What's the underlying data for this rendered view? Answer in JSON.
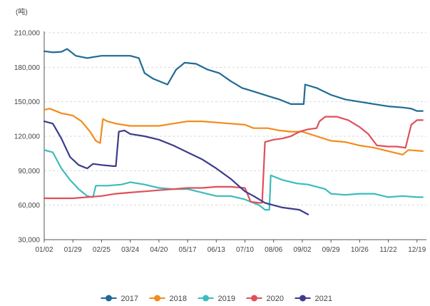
{
  "chart_data": {
    "type": "line",
    "unit": "(吨)",
    "ylim": [
      30000,
      210000
    ],
    "yticks": [
      "30,000",
      "60,000",
      "90,000",
      "120,000",
      "150,000",
      "180,000",
      "210,000"
    ],
    "ytick_values": [
      30000,
      60000,
      90000,
      120000,
      150000,
      180000,
      210000
    ],
    "x_categories": [
      "01/02",
      "01/29",
      "02/25",
      "03/24",
      "04/20",
      "05/17",
      "06/13",
      "07/10",
      "08/06",
      "09/02",
      "09/29",
      "10/26",
      "11/22",
      "12/19"
    ],
    "grid": "horizontal-dashed",
    "legend_position": "bottom",
    "series": [
      {
        "name": "2017",
        "color": "#1f6b93",
        "points": [
          [
            0,
            194000
          ],
          [
            0.3,
            193000
          ],
          [
            0.6,
            193500
          ],
          [
            0.8,
            196000
          ],
          [
            1.1,
            190000
          ],
          [
            1.5,
            188000
          ],
          [
            2,
            190000
          ],
          [
            2.5,
            190000
          ],
          [
            3,
            190000
          ],
          [
            3.3,
            188000
          ],
          [
            3.5,
            175000
          ],
          [
            3.8,
            170000
          ],
          [
            4.3,
            165000
          ],
          [
            4.6,
            178000
          ],
          [
            4.9,
            184000
          ],
          [
            5.3,
            183000
          ],
          [
            5.7,
            178000
          ],
          [
            6.1,
            175000
          ],
          [
            6.5,
            168000
          ],
          [
            6.9,
            162000
          ],
          [
            7.3,
            159000
          ],
          [
            7.8,
            155000
          ],
          [
            8.2,
            152000
          ],
          [
            8.6,
            148000
          ],
          [
            9.05,
            148000
          ],
          [
            9.1,
            165000
          ],
          [
            9.5,
            162000
          ],
          [
            10,
            156000
          ],
          [
            10.5,
            152000
          ],
          [
            11,
            150000
          ],
          [
            11.5,
            148000
          ],
          [
            12,
            146000
          ],
          [
            12.5,
            145000
          ],
          [
            12.8,
            144000
          ],
          [
            13,
            142000
          ],
          [
            13.2,
            142000
          ]
        ]
      },
      {
        "name": "2018",
        "color": "#f28c1c",
        "points": [
          [
            0,
            143000
          ],
          [
            0.2,
            144000
          ],
          [
            0.6,
            140000
          ],
          [
            1,
            138000
          ],
          [
            1.3,
            133000
          ],
          [
            1.6,
            124000
          ],
          [
            1.8,
            116000
          ],
          [
            1.95,
            114000
          ],
          [
            2.05,
            135000
          ],
          [
            2.2,
            133000
          ],
          [
            2.5,
            131000
          ],
          [
            3,
            129000
          ],
          [
            3.6,
            129000
          ],
          [
            4,
            129000
          ],
          [
            4.5,
            131000
          ],
          [
            5,
            133000
          ],
          [
            5.5,
            133000
          ],
          [
            6,
            132000
          ],
          [
            6.5,
            131000
          ],
          [
            7,
            130000
          ],
          [
            7.3,
            127000
          ],
          [
            7.8,
            127000
          ],
          [
            8.2,
            125000
          ],
          [
            8.6,
            124000
          ],
          [
            9,
            124000
          ],
          [
            9.5,
            120000
          ],
          [
            10,
            116000
          ],
          [
            10.5,
            115000
          ],
          [
            11,
            112000
          ],
          [
            11.5,
            110000
          ],
          [
            12,
            107000
          ],
          [
            12.5,
            104000
          ],
          [
            12.7,
            108000
          ],
          [
            13.2,
            107000
          ]
        ]
      },
      {
        "name": "2019",
        "color": "#3cbcbc",
        "points": [
          [
            0,
            108000
          ],
          [
            0.3,
            106000
          ],
          [
            0.6,
            92000
          ],
          [
            0.9,
            82000
          ],
          [
            1.2,
            74000
          ],
          [
            1.5,
            68000
          ],
          [
            1.7,
            67000
          ],
          [
            1.8,
            77000
          ],
          [
            2.2,
            77000
          ],
          [
            2.7,
            78000
          ],
          [
            3,
            80000
          ],
          [
            3.5,
            78000
          ],
          [
            4,
            75000
          ],
          [
            4.5,
            74000
          ],
          [
            5,
            74000
          ],
          [
            5.5,
            71000
          ],
          [
            6,
            68000
          ],
          [
            6.5,
            68000
          ],
          [
            7,
            65000
          ],
          [
            7.5,
            60000
          ],
          [
            7.7,
            56000
          ],
          [
            7.85,
            56000
          ],
          [
            7.9,
            86000
          ],
          [
            8.3,
            82000
          ],
          [
            8.8,
            79000
          ],
          [
            9.2,
            78000
          ],
          [
            9.8,
            74000
          ],
          [
            10,
            70000
          ],
          [
            10.5,
            69000
          ],
          [
            11,
            70000
          ],
          [
            11.5,
            70000
          ],
          [
            12,
            67000
          ],
          [
            12.5,
            68000
          ],
          [
            13,
            67000
          ],
          [
            13.2,
            67000
          ]
        ]
      },
      {
        "name": "2020",
        "color": "#e0505a",
        "points": [
          [
            0,
            66000
          ],
          [
            0.5,
            66000
          ],
          [
            1,
            66000
          ],
          [
            1.5,
            67000
          ],
          [
            2,
            68000
          ],
          [
            2.5,
            70000
          ],
          [
            3,
            71000
          ],
          [
            3.5,
            72000
          ],
          [
            4,
            73000
          ],
          [
            4.5,
            74000
          ],
          [
            5,
            75000
          ],
          [
            5.5,
            75000
          ],
          [
            6,
            76000
          ],
          [
            6.5,
            76000
          ],
          [
            7,
            75000
          ],
          [
            7.2,
            63000
          ],
          [
            7.5,
            62000
          ],
          [
            7.6,
            62000
          ],
          [
            7.7,
            115000
          ],
          [
            8,
            117000
          ],
          [
            8.3,
            118000
          ],
          [
            8.6,
            120000
          ],
          [
            8.9,
            124000
          ],
          [
            9.2,
            126000
          ],
          [
            9.5,
            127000
          ],
          [
            9.6,
            133000
          ],
          [
            9.8,
            137000
          ],
          [
            10.2,
            137000
          ],
          [
            10.6,
            134000
          ],
          [
            11,
            128000
          ],
          [
            11.3,
            122000
          ],
          [
            11.6,
            112000
          ],
          [
            12,
            111000
          ],
          [
            12.3,
            111000
          ],
          [
            12.6,
            110000
          ],
          [
            12.8,
            130000
          ],
          [
            13,
            134000
          ],
          [
            13.2,
            134000
          ]
        ]
      },
      {
        "name": "2021",
        "color": "#3c3c8a",
        "points": [
          [
            0,
            133000
          ],
          [
            0.3,
            131000
          ],
          [
            0.6,
            118000
          ],
          [
            0.9,
            102000
          ],
          [
            1.2,
            95000
          ],
          [
            1.5,
            92000
          ],
          [
            1.7,
            96000
          ],
          [
            2,
            95000
          ],
          [
            2.4,
            94000
          ],
          [
            2.5,
            94000
          ],
          [
            2.6,
            124000
          ],
          [
            2.8,
            125000
          ],
          [
            3,
            122000
          ],
          [
            3.5,
            120000
          ],
          [
            4,
            117000
          ],
          [
            4.5,
            112000
          ],
          [
            5,
            106000
          ],
          [
            5.5,
            100000
          ],
          [
            6,
            92000
          ],
          [
            6.5,
            83000
          ],
          [
            7,
            72000
          ],
          [
            7.3,
            68000
          ],
          [
            7.7,
            62000
          ],
          [
            8,
            60000
          ],
          [
            8.3,
            58000
          ],
          [
            8.6,
            57000
          ],
          [
            8.9,
            56000
          ],
          [
            9.2,
            52000
          ]
        ]
      }
    ],
    "legend": [
      "2017",
      "2018",
      "2019",
      "2020",
      "2021"
    ]
  }
}
